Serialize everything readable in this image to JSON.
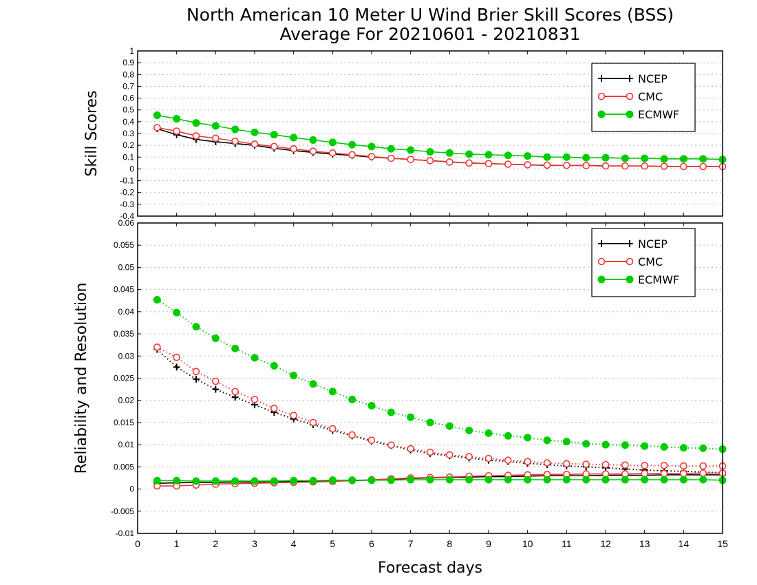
{
  "title": {
    "line1": "North American 10 Meter U Wind Brier Skill Scores (BSS)",
    "line2": "Average For 20210601 - 20210831"
  },
  "colors": {
    "NCEP": "#000000",
    "CMC": "#ee3a3a",
    "ECMWF": "#00cc00"
  },
  "chart_data": [
    {
      "type": "line",
      "name": "bss",
      "ylabel": "Skill Scores",
      "xlim": [
        0,
        15
      ],
      "ylim": [
        -0.4,
        1
      ],
      "yticks": [
        "-0.4",
        "-0.3",
        "-0.2",
        "-0.1",
        "0",
        "0.1",
        "0.2",
        "0.3",
        "0.4",
        "0.5",
        "0.6",
        "0.7",
        "0.8",
        "0.9",
        "1"
      ],
      "grid": true,
      "legend_position": "top-right",
      "x": [
        0.5,
        1,
        1.5,
        2,
        2.5,
        3,
        3.5,
        4,
        4.5,
        5,
        5.5,
        6,
        6.5,
        7,
        7.5,
        8,
        8.5,
        9,
        9.5,
        10,
        10.5,
        11,
        11.5,
        12,
        12.5,
        13,
        13.5,
        14,
        14.5,
        15
      ],
      "series": [
        {
          "name": "NCEP",
          "marker": "plus",
          "linestyle": "solid",
          "values": [
            0.34,
            0.29,
            0.25,
            0.23,
            0.215,
            0.2,
            0.175,
            0.155,
            0.14,
            0.125,
            0.115,
            0.1,
            0.09,
            0.08,
            0.07,
            0.06,
            0.05,
            0.045,
            0.04,
            0.035,
            0.03,
            0.03,
            0.03,
            0.025,
            0.025,
            0.025,
            0.02,
            0.02,
            0.02,
            0.02
          ]
        },
        {
          "name": "CMC",
          "marker": "open-circle",
          "linestyle": "solid",
          "values": [
            0.35,
            0.32,
            0.28,
            0.26,
            0.235,
            0.21,
            0.19,
            0.17,
            0.15,
            0.135,
            0.12,
            0.105,
            0.09,
            0.08,
            0.07,
            0.058,
            0.05,
            0.045,
            0.04,
            0.035,
            0.032,
            0.03,
            0.028,
            0.025,
            0.025,
            0.024,
            0.022,
            0.02,
            0.02,
            0.02
          ]
        },
        {
          "name": "ECMWF",
          "marker": "filled-circle",
          "linestyle": "solid",
          "values": [
            0.455,
            0.425,
            0.39,
            0.365,
            0.335,
            0.31,
            0.29,
            0.265,
            0.245,
            0.225,
            0.205,
            0.19,
            0.17,
            0.16,
            0.145,
            0.135,
            0.125,
            0.12,
            0.115,
            0.11,
            0.1,
            0.1,
            0.095,
            0.095,
            0.09,
            0.09,
            0.085,
            0.085,
            0.085,
            0.08
          ]
        }
      ]
    },
    {
      "type": "line",
      "name": "reliability-resolution",
      "xlabel": "Forecast days",
      "ylabel": "Reliability and Resolution",
      "xlim": [
        0,
        15
      ],
      "xticks": [
        "0",
        "1",
        "2",
        "3",
        "4",
        "5",
        "6",
        "7",
        "8",
        "9",
        "10",
        "11",
        "12",
        "13",
        "14",
        "15"
      ],
      "ylim": [
        -0.01,
        0.06
      ],
      "yticks": [
        "-0.01",
        "-0.005",
        "0",
        "0.005",
        "0.01",
        "0.015",
        "0.02",
        "0.025",
        "0.03",
        "0.035",
        "0.04",
        "0.045",
        "0.05",
        "0.055",
        "0.06"
      ],
      "grid": true,
      "legend_position": "top-right",
      "x": [
        0.5,
        1,
        1.5,
        2,
        2.5,
        3,
        3.5,
        4,
        4.5,
        5,
        5.5,
        6,
        6.5,
        7,
        7.5,
        8,
        8.5,
        9,
        9.5,
        10,
        10.5,
        11,
        11.5,
        12,
        12.5,
        13,
        13.5,
        14,
        14.5,
        15
      ],
      "series": [
        {
          "name": "NCEP",
          "component": "resolution",
          "marker": "plus",
          "linestyle": "dotted",
          "values": [
            0.0315,
            0.0275,
            0.0248,
            0.0225,
            0.0207,
            0.019,
            0.0173,
            0.0158,
            0.0145,
            0.0132,
            0.012,
            0.0108,
            0.0098,
            0.0088,
            0.008,
            0.0075,
            0.007,
            0.0065,
            0.0062,
            0.0058,
            0.0055,
            0.0052,
            0.005,
            0.0048,
            0.0045,
            0.0043,
            0.0041,
            0.004,
            0.0038,
            0.0037
          ]
        },
        {
          "name": "CMC",
          "component": "resolution",
          "marker": "open-circle",
          "linestyle": "dotted",
          "values": [
            0.032,
            0.0297,
            0.0265,
            0.0243,
            0.022,
            0.0202,
            0.0182,
            0.0166,
            0.015,
            0.0136,
            0.0122,
            0.011,
            0.0099,
            0.0091,
            0.0083,
            0.0077,
            0.0073,
            0.0069,
            0.0065,
            0.0062,
            0.0059,
            0.0057,
            0.0056,
            0.0055,
            0.0054,
            0.0053,
            0.0053,
            0.0052,
            0.0052,
            0.0052
          ]
        },
        {
          "name": "ECMWF",
          "component": "resolution",
          "marker": "filled-circle",
          "linestyle": "dotted",
          "values": [
            0.0427,
            0.0398,
            0.0366,
            0.034,
            0.0317,
            0.0296,
            0.0278,
            0.0256,
            0.0237,
            0.022,
            0.0202,
            0.0188,
            0.0173,
            0.0162,
            0.015,
            0.0142,
            0.0132,
            0.0126,
            0.012,
            0.0116,
            0.011,
            0.0107,
            0.0102,
            0.01,
            0.0099,
            0.0097,
            0.0095,
            0.0093,
            0.0092,
            0.009
          ]
        },
        {
          "name": "NCEP",
          "component": "reliability",
          "marker": "plus",
          "linestyle": "solid",
          "values": [
            0.0013,
            0.0014,
            0.0015,
            0.0015,
            0.0016,
            0.0016,
            0.0017,
            0.0017,
            0.0018,
            0.0018,
            0.0019,
            0.002,
            0.0022,
            0.0024,
            0.0025,
            0.0026,
            0.0027,
            0.0028,
            0.0028,
            0.0029,
            0.003,
            0.003,
            0.003,
            0.0031,
            0.0031,
            0.0031,
            0.0032,
            0.0032,
            0.0032,
            0.0032
          ]
        },
        {
          "name": "CMC",
          "component": "reliability",
          "marker": "open-circle",
          "linestyle": "solid",
          "values": [
            0.0007,
            0.0007,
            0.0009,
            0.0011,
            0.0012,
            0.0013,
            0.0014,
            0.0015,
            0.0016,
            0.0017,
            0.0019,
            0.0021,
            0.0023,
            0.0025,
            0.0026,
            0.0027,
            0.0029,
            0.003,
            0.0031,
            0.0032,
            0.0033,
            0.0033,
            0.0034,
            0.0034,
            0.0034,
            0.0035,
            0.0035,
            0.0035,
            0.0036,
            0.0036
          ]
        },
        {
          "name": "ECMWF",
          "component": "reliability",
          "marker": "filled-circle",
          "linestyle": "solid",
          "values": [
            0.0019,
            0.0019,
            0.0018,
            0.0018,
            0.0018,
            0.0018,
            0.0018,
            0.0019,
            0.0019,
            0.002,
            0.002,
            0.002,
            0.002,
            0.0021,
            0.0021,
            0.0021,
            0.0021,
            0.0021,
            0.0021,
            0.0021,
            0.0021,
            0.0021,
            0.0021,
            0.0021,
            0.0021,
            0.0021,
            0.0021,
            0.0021,
            0.0021,
            0.002
          ]
        }
      ]
    }
  ]
}
